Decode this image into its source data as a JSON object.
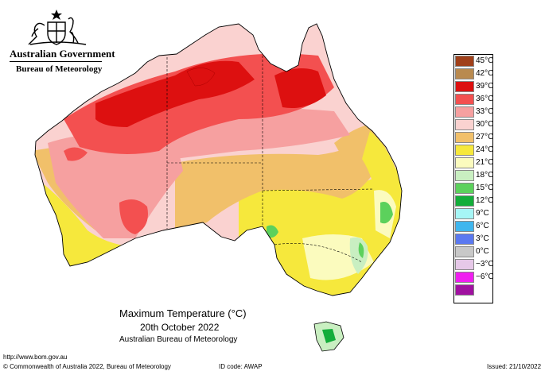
{
  "header": {
    "government": "Australian Government",
    "bureau": "Bureau of Meteorology"
  },
  "caption": {
    "title": "Maximum Temperature (°C)",
    "date": "20th October 2022",
    "source": "Australian Bureau of Meteorology"
  },
  "legend": [
    {
      "label": "45°C",
      "color": "#a0401a"
    },
    {
      "label": "42°C",
      "color": "#b98a4f"
    },
    {
      "label": "39°C",
      "color": "#dd1010"
    },
    {
      "label": "36°C",
      "color": "#f35050"
    },
    {
      "label": "33°C",
      "color": "#f6a0a0"
    },
    {
      "label": "30°C",
      "color": "#fad2d0"
    },
    {
      "label": "27°C",
      "color": "#f1c06a"
    },
    {
      "label": "24°C",
      "color": "#f6e83c"
    },
    {
      "label": "21°C",
      "color": "#fbfbbe"
    },
    {
      "label": "18°C",
      "color": "#c9efc1"
    },
    {
      "label": "15°C",
      "color": "#5cd15c"
    },
    {
      "label": "12°C",
      "color": "#13ad3a"
    },
    {
      "label": "9°C",
      "color": "#a6f6f6"
    },
    {
      "label": "6°C",
      "color": "#3fb6ee"
    },
    {
      "label": "3°C",
      "color": "#5b79f0"
    },
    {
      "label": "0°C",
      "color": "#c8c8c8"
    },
    {
      "label": "−3°C",
      "color": "#e6c8e8"
    },
    {
      "label": "−6°C",
      "color": "#f01ef0"
    },
    {
      "label": "",
      "color": "#a011a0"
    }
  ],
  "footer": {
    "url": "http://www.bom.gov.au",
    "copyright": "© Commonwealth of Australia 2022, Bureau of Meteorology",
    "id_code": "ID code: AWAP",
    "issued": "Issued: 21/10/2022"
  }
}
